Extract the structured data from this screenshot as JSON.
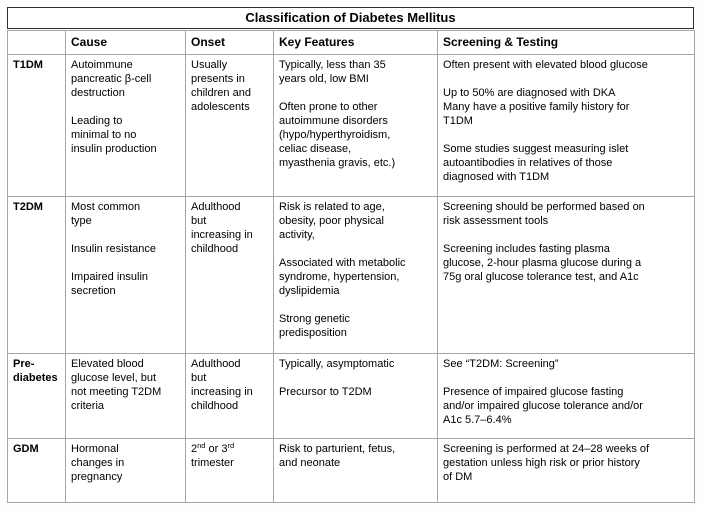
{
  "table": {
    "title": "Classification of Diabetes Mellitus",
    "headers": [
      "",
      "Cause",
      "Onset",
      "Key Features",
      "Screening & Testing"
    ],
    "rows": [
      {
        "label": [
          "T1DM"
        ],
        "cause": [
          "Autoimmune",
          "pancreatic β-cell",
          "destruction",
          "",
          "Leading to",
          "minimal to no",
          "insulin production"
        ],
        "onset": [
          "Usually",
          "presents in",
          "children and",
          "adolescents"
        ],
        "key_features": [
          "Typically, less than 35",
          "years old, low BMI",
          "",
          "Often prone to other",
          "autoimmune disorders",
          "(hypo/hyperthyroidism,",
          "celiac disease,",
          "myasthenia gravis, etc.)"
        ],
        "screening": [
          "Often present with elevated blood glucose",
          "",
          "Up to 50% are diagnosed with DKA",
          "Many have a positive family history for",
          "T1DM",
          "",
          "Some studies suggest measuring islet",
          "autoantibodies in relatives of those",
          "diagnosed with T1DM"
        ]
      },
      {
        "label": [
          "T2DM"
        ],
        "cause": [
          "Most common",
          "type",
          "",
          "Insulin resistance",
          "",
          "Impaired insulin",
          "secretion"
        ],
        "onset": [
          "Adulthood",
          "but",
          "increasing in",
          "childhood"
        ],
        "key_features": [
          "Risk is related to age,",
          "obesity, poor physical",
          "activity,",
          "",
          "Associated with metabolic",
          "syndrome, hypertension,",
          "dyslipidemia",
          "",
          "Strong genetic",
          "predisposition"
        ],
        "screening": [
          "Screening should be performed based on",
          "risk assessment tools",
          "",
          "Screening includes fasting plasma",
          "glucose, 2-hour plasma glucose during a",
          "75g oral glucose tolerance test, and A1c"
        ]
      },
      {
        "label": [
          "Pre-",
          "diabetes"
        ],
        "cause": [
          "Elevated blood",
          "glucose level, but",
          "not meeting T2DM",
          "criteria"
        ],
        "onset": [
          "Adulthood",
          "but",
          "increasing in",
          "childhood"
        ],
        "key_features": [
          "Typically, asymptomatic",
          "",
          "Precursor to T2DM"
        ],
        "screening": [
          "See “T2DM: Screening”",
          "",
          "Presence of impaired glucose fasting",
          "and/or impaired glucose tolerance and/or",
          "A1c 5.7–6.4%"
        ]
      },
      {
        "label": [
          "GDM"
        ],
        "cause": [
          "Hormonal",
          "changes in",
          "pregnancy"
        ],
        "onset_parts": {
          "base1": "2",
          "sup1": "nd",
          "base2": " or 3",
          "sup2": "rd",
          "base3": "\ntrimester"
        },
        "key_features": [
          "Risk to parturient, fetus,",
          "and neonate"
        ],
        "screening": [
          "Screening is performed at 24–28 weeks of",
          "gestation unless high risk or prior history",
          "of DM"
        ]
      }
    ]
  },
  "colors": {
    "title_border": "#2f2f2f",
    "grid_border": "#a6a6a6",
    "outer_border": "#8d8d8d",
    "text": "#000000",
    "background": "#ffffff"
  }
}
